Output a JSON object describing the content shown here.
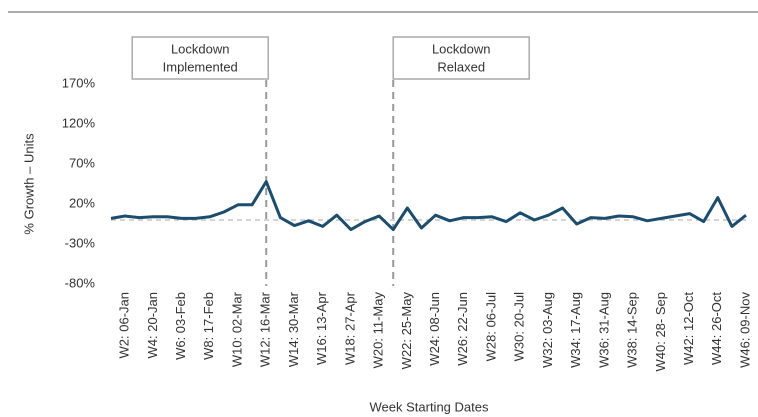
{
  "chart_data": {
    "type": "line",
    "xlabel": "Week Starting Dates",
    "ylabel": "% Growth – Units",
    "categories": [
      null,
      "W2: 06-Jan",
      null,
      "W4: 20-Jan",
      null,
      "W6: 03-Feb",
      null,
      "W8: 17-Feb",
      null,
      "W10: 02-Mar",
      null,
      "W12: 16-Mar",
      null,
      "W14: 30-Mar",
      null,
      "W16: 13-Apr",
      null,
      "W18: 27-Apr",
      null,
      "W20: 11-May",
      null,
      "W22: 25-May",
      null,
      "W24: 08-Jun",
      null,
      "W26: 22-Jun",
      null,
      "W28: 06-Jul",
      null,
      "W30: 20-Jul",
      null,
      "W32: 03-Aug",
      null,
      "W34: 17-Aug",
      null,
      "W36: 31-Aug",
      null,
      "W38: 14-Sep",
      null,
      "W40: 28- Sep",
      null,
      "W42: 12-Oct",
      null,
      "W44: 26-Oct",
      null,
      "W46: 09-Nov"
    ],
    "values": [
      2,
      5,
      3,
      4,
      4,
      2,
      2,
      4,
      10,
      19,
      19,
      48,
      3,
      -7,
      -1,
      -8,
      6,
      -12,
      -2,
      5,
      -12,
      15,
      -10,
      6,
      -1,
      3,
      3,
      4,
      -2,
      9,
      0,
      6,
      15,
      -5,
      3,
      2,
      5,
      4,
      -1,
      2,
      5,
      8,
      -2,
      28,
      -8,
      6
    ],
    "color": "#1b4d6e",
    "ylim": [
      -80,
      170
    ],
    "yticks": [
      {
        "value": -80,
        "label": "-80%"
      },
      {
        "value": -30,
        "label": "-30%"
      },
      {
        "value": 20,
        "label": "20%"
      },
      {
        "value": 70,
        "label": "70%"
      },
      {
        "value": 120,
        "label": "120%"
      },
      {
        "value": 170,
        "label": "170%"
      }
    ],
    "annotations": [
      {
        "lines": [
          "Lockdown",
          "Implemented"
        ],
        "x": "W12: 16-Mar"
      },
      {
        "lines": [
          "Lockdown",
          "Relaxed"
        ],
        "x": "W21"
      }
    ]
  }
}
